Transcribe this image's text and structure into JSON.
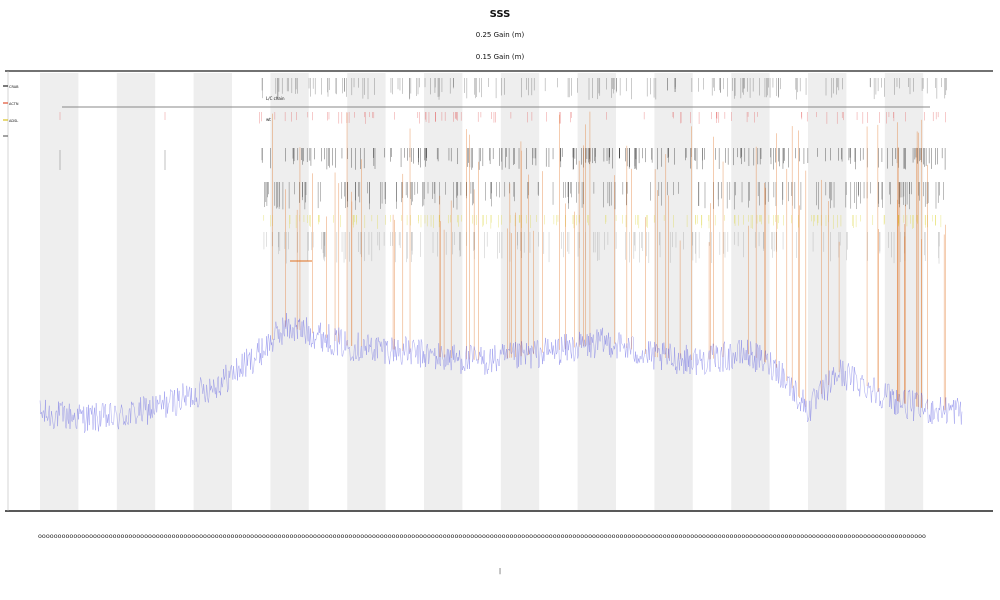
{
  "chart_data": {
    "type": "line",
    "title": "SSS",
    "subtitles": [
      "0.25 Gain (m)",
      "0.15 Gain (m)"
    ],
    "legend": {
      "placement": "top-left",
      "items": [
        {
          "label": "CRAB",
          "color": "#222222"
        },
        {
          "label": "ACTN",
          "color": "#e05030"
        },
        {
          "label": "ADSL",
          "color": "#d8c020"
        },
        {
          "label": "",
          "color": "#666666"
        }
      ]
    },
    "track_labels": [
      "L/C chain",
      "",
      "wt"
    ],
    "xlabel": "",
    "ylabel": "",
    "grid": false,
    "shaded_bands": 12,
    "x_range": [
      0,
      1200
    ],
    "y_range": [
      0,
      100
    ],
    "series": [
      {
        "color": "#5050e0",
        "kind": "baseline"
      },
      {
        "color": "#e07020",
        "kind": "spikes"
      },
      {
        "color": "#d8d020",
        "kind": "ticks"
      },
      {
        "color": "#222222",
        "kind": "ticks"
      },
      {
        "color": "#e05050",
        "kind": "ticks"
      }
    ],
    "baseline_profile": {
      "x": [
        0,
        60,
        100,
        140,
        200,
        240,
        280,
        320,
        360,
        400,
        460,
        520,
        580,
        620,
        680,
        740,
        800,
        860,
        920,
        960,
        1000,
        1040,
        1080,
        1120,
        1160,
        1200
      ],
      "y": [
        15,
        14,
        14,
        16,
        20,
        24,
        30,
        38,
        36,
        33,
        32,
        30,
        29,
        30,
        32,
        34,
        30,
        29,
        31,
        27,
        16,
        26,
        22,
        18,
        16,
        16
      ]
    }
  },
  "xaxis": {
    "tick_text": "0000000000000000000000000000000000000000000000000000000000000000000000000000000000000000000000000000000000000000000000000000000000000000000000000000000000000000000000000000000000000000000000000000000000000000000000000000000000"
  },
  "footer_mark": "|"
}
